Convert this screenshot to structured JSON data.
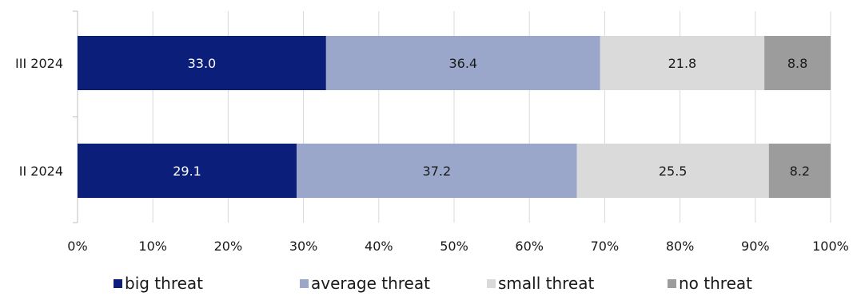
{
  "chart_data": {
    "type": "bar",
    "orientation": "horizontal",
    "stacked": true,
    "percent": true,
    "categories": [
      "III 2024",
      "II 2024"
    ],
    "series": [
      {
        "name": "big threat",
        "values": [
          33.0,
          29.1
        ],
        "color": "#0b1f7a",
        "label_color": "#ffffff"
      },
      {
        "name": "average threat",
        "values": [
          36.4,
          37.2
        ],
        "color": "#9aa7cb",
        "label_color": "#1a1a1a"
      },
      {
        "name": "small threat",
        "values": [
          21.8,
          25.5
        ],
        "color": "#d9dad9",
        "label_color": "#1a1a1a"
      },
      {
        "name": "no threat",
        "values": [
          8.8,
          8.2
        ],
        "color": "#9b9c9b",
        "label_color": "#1a1a1a"
      }
    ],
    "xlim": [
      0,
      100
    ],
    "xticks": [
      "0%",
      "10%",
      "20%",
      "30%",
      "40%",
      "50%",
      "60%",
      "70%",
      "80%",
      "90%",
      "100%"
    ],
    "grid": true,
    "legend_position": "bottom"
  }
}
